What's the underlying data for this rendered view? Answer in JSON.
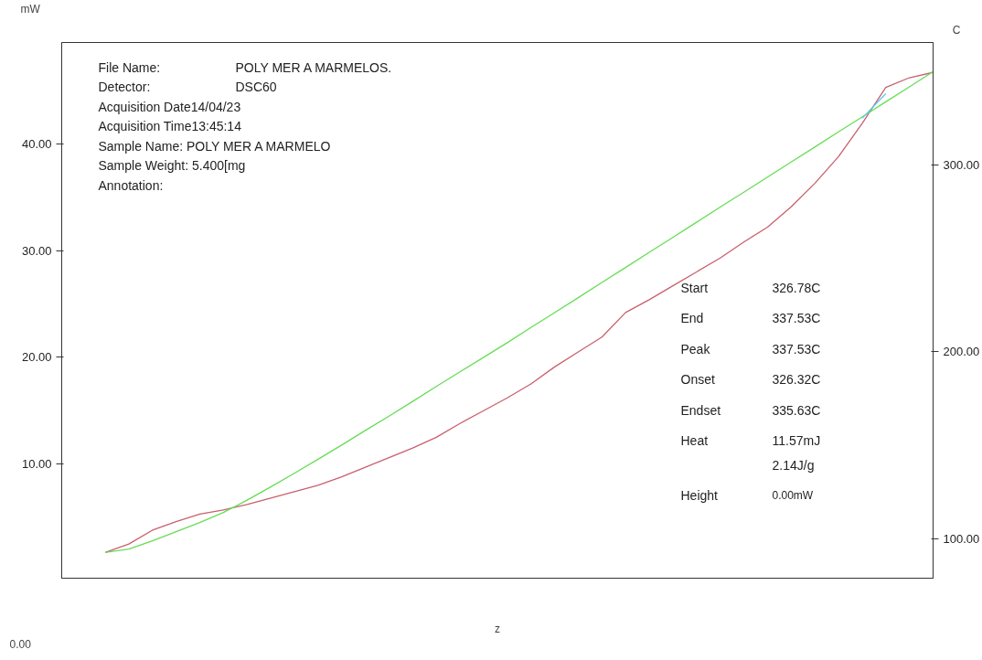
{
  "chart_data": {
    "type": "line",
    "xlabel": "z",
    "ylabel": "mW",
    "y2label": "C",
    "categories": [
      null,
      null,
      null,
      null,
      null,
      null,
      null,
      null,
      null,
      null,
      null,
      null,
      null,
      null,
      null,
      null,
      null,
      null,
      null,
      null,
      null,
      null,
      null,
      null,
      null,
      null,
      null,
      null,
      null,
      null,
      null,
      null,
      null,
      null,
      null,
      null
    ],
    "series": [
      {
        "color": "#c8606e",
        "values": [
          1.7,
          2.5,
          3.8,
          4.6,
          5.3,
          5.7,
          6.2,
          6.8,
          7.4,
          8.0,
          8.8,
          9.7,
          10.6,
          11.5,
          12.5,
          13.8,
          15.0,
          16.2,
          17.5,
          19.1,
          20.5,
          21.9,
          24.2,
          25.4,
          26.7,
          28.0,
          29.3,
          30.8,
          32.2,
          34.1,
          36.3,
          38.8,
          41.9,
          45.3,
          46.2,
          46.7
        ]
      },
      {
        "color": "#66dd55",
        "axis": "y2",
        "values": [
          92.7,
          94.6,
          99.0,
          103.9,
          108.8,
          114.1,
          120.7,
          127.8,
          135.1,
          142.6,
          150.2,
          158.0,
          165.6,
          173.5,
          181.5,
          189.3,
          197.1,
          204.9,
          213.0,
          221.0,
          229.0,
          237.1,
          245.1,
          253.2,
          261.2,
          269.3,
          277.4,
          285.4,
          293.4,
          301.5,
          309.5,
          317.6,
          325.6,
          333.7,
          341.7,
          349.8
        ]
      },
      {
        "color": "#55ccee",
        "values": [
          null,
          null,
          null,
          null,
          null,
          null,
          null,
          null,
          null,
          null,
          null,
          null,
          null,
          null,
          null,
          null,
          null,
          null,
          null,
          null,
          null,
          null,
          null,
          null,
          null,
          null,
          null,
          null,
          null,
          null,
          null,
          null,
          42.4,
          44.7,
          null,
          null
        ]
      }
    ],
    "ylim": [
      -0.7,
      49.5
    ],
    "yticks": [
      {
        "value": 10,
        "label": "10.00"
      },
      {
        "value": 20,
        "label": "20.00"
      },
      {
        "value": 30,
        "label": "30.00"
      },
      {
        "value": 40,
        "label": "40.00"
      }
    ],
    "y2lim": [
      79,
      365.4
    ],
    "y2ticks": [
      {
        "value": 100,
        "label": "100.00"
      },
      {
        "value": 200,
        "label": "200.00"
      },
      {
        "value": 300,
        "label": "300.00"
      }
    ],
    "grid": false,
    "line_style": "solid",
    "marker": "none",
    "annotations": [
      "File Name:",
      "POLY MER A MARMELOS.",
      "Detector:",
      "DSC60",
      "Acquisition Date14/04/23",
      "Acquisition Time13:45:14",
      "Sample Name:  POLY MER A MARMELO",
      "Sample Weight: 5.400[mg",
      "Annotation:",
      "Start",
      "326.78C",
      "End",
      "337.53C",
      "Peak",
      "337.53C",
      "Onset",
      "326.32C",
      "Endset",
      "335.63C",
      "Heat",
      "11.57mJ",
      "2.14J/g",
      "Height",
      "0.00mW",
      "0.00"
    ]
  }
}
